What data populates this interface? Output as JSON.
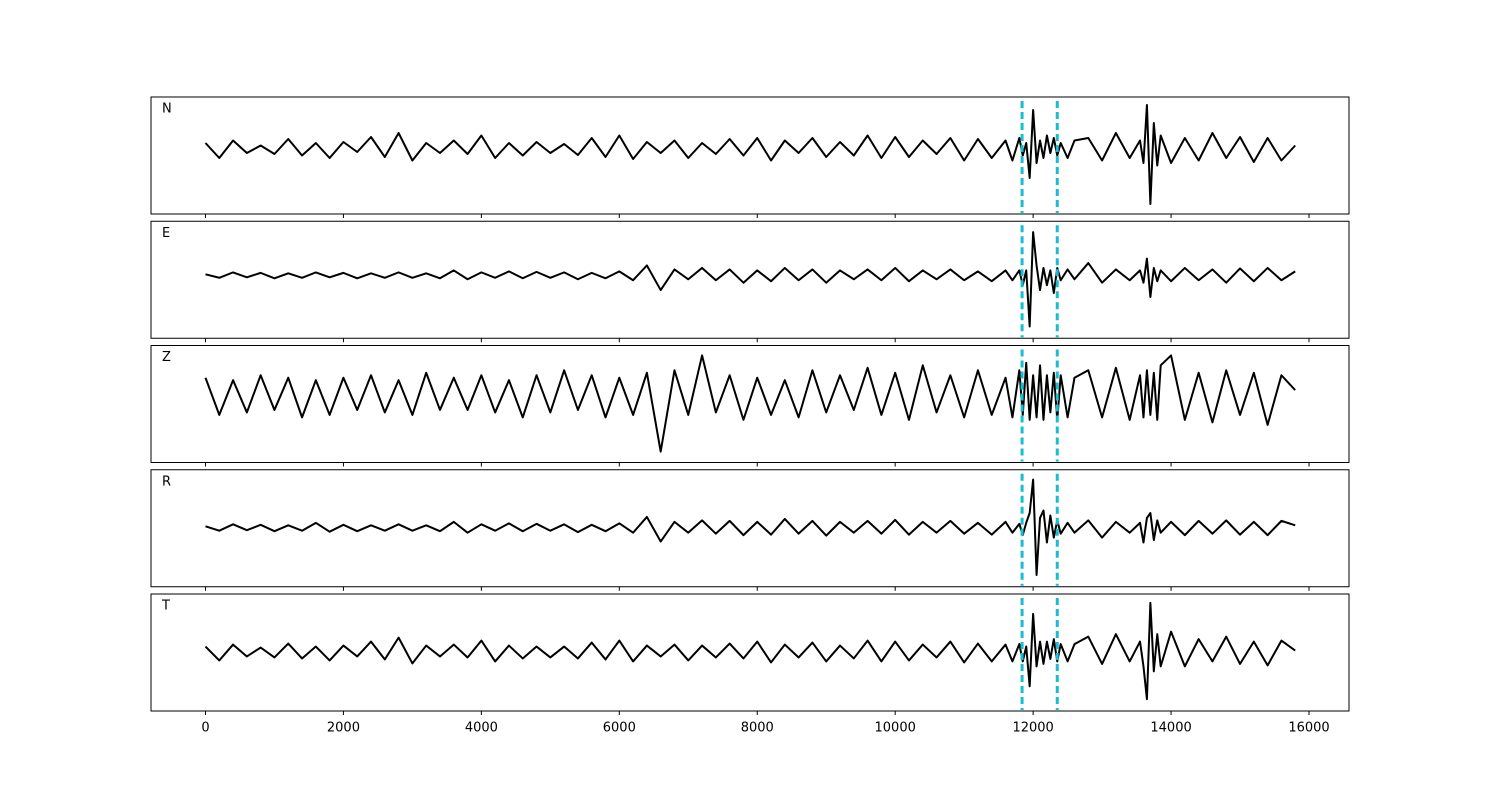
{
  "chart_data": {
    "type": "line",
    "x": [
      0,
      200,
      400,
      600,
      800,
      1000,
      1200,
      1400,
      1600,
      1800,
      2000,
      2200,
      2400,
      2600,
      2800,
      3000,
      3200,
      3400,
      3600,
      3800,
      4000,
      4200,
      4400,
      4600,
      4800,
      5000,
      5200,
      5400,
      5600,
      5800,
      6000,
      6200,
      6400,
      6600,
      6800,
      7000,
      7200,
      7400,
      7600,
      7800,
      8000,
      8200,
      8400,
      8600,
      8800,
      9000,
      9200,
      9400,
      9600,
      9800,
      10000,
      10200,
      10400,
      10600,
      10800,
      11000,
      11200,
      11400,
      11600,
      11700,
      11800,
      11850,
      11900,
      11950,
      12000,
      12050,
      12100,
      12150,
      12200,
      12250,
      12300,
      12350,
      12400,
      12500,
      12600,
      12800,
      13000,
      13200,
      13400,
      13550,
      13600,
      13650,
      13700,
      13750,
      13800,
      13850,
      14000,
      14200,
      14400,
      14600,
      14800,
      15000,
      15200,
      15400,
      15600,
      15800
    ],
    "xlim": [
      -790,
      16580
    ],
    "xticks": [
      0,
      2000,
      4000,
      6000,
      8000,
      10000,
      12000,
      14000,
      16000
    ],
    "vlines": [
      11840,
      12350
    ],
    "vline_color": "#17becf",
    "series": [
      {
        "name": "N",
        "color": "#000000",
        "ylim": [
          -1.32,
          1.02
        ],
        "values": [
          0.1,
          -0.2,
          0.15,
          -0.1,
          0.05,
          -0.12,
          0.18,
          -0.15,
          0.1,
          -0.2,
          0.12,
          -0.08,
          0.22,
          -0.18,
          0.3,
          -0.25,
          0.1,
          -0.1,
          0.15,
          -0.12,
          0.25,
          -0.2,
          0.1,
          -0.15,
          0.12,
          -0.1,
          0.08,
          -0.14,
          0.2,
          -0.18,
          0.25,
          -0.22,
          0.12,
          -0.1,
          0.15,
          -0.2,
          0.1,
          -0.12,
          0.18,
          -0.15,
          0.2,
          -0.25,
          0.15,
          -0.1,
          0.2,
          -0.18,
          0.12,
          -0.15,
          0.25,
          -0.2,
          0.22,
          -0.18,
          0.15,
          -0.12,
          0.2,
          -0.25,
          0.18,
          -0.2,
          0.15,
          -0.25,
          0.2,
          -0.15,
          0.1,
          -0.6,
          0.76,
          -0.3,
          0.15,
          -0.2,
          0.25,
          -0.1,
          0.2,
          -0.15,
          0.1,
          -0.2,
          0.15,
          0.2,
          -0.25,
          0.3,
          -0.2,
          0.15,
          -0.3,
          0.86,
          -1.12,
          0.5,
          -0.35,
          0.25,
          -0.3,
          0.2,
          -0.25,
          0.3,
          -0.2,
          0.22,
          -0.28,
          0.2,
          -0.25,
          0.05
        ]
      },
      {
        "name": "E",
        "color": "#000000",
        "ylim": [
          -1.28,
          1.1
        ],
        "values": [
          0.02,
          -0.05,
          0.06,
          -0.04,
          0.05,
          -0.06,
          0.04,
          -0.05,
          0.06,
          -0.04,
          0.05,
          -0.06,
          0.04,
          -0.05,
          0.06,
          -0.05,
          0.04,
          -0.06,
          0.1,
          -0.08,
          0.06,
          -0.05,
          0.08,
          -0.06,
          0.07,
          -0.05,
          0.06,
          -0.08,
          0.05,
          -0.06,
          0.08,
          -0.1,
          0.2,
          -0.3,
          0.12,
          -0.08,
          0.15,
          -0.1,
          0.12,
          -0.15,
          0.1,
          -0.12,
          0.15,
          -0.1,
          0.12,
          -0.15,
          0.1,
          -0.08,
          0.12,
          -0.1,
          0.15,
          -0.12,
          0.1,
          -0.08,
          0.12,
          -0.1,
          0.08,
          -0.12,
          0.1,
          -0.1,
          0.1,
          -0.2,
          0.1,
          -1.04,
          0.88,
          0.2,
          -0.3,
          0.15,
          -0.2,
          0.1,
          -0.36,
          0.15,
          -0.1,
          0.12,
          -0.08,
          0.25,
          -0.15,
          0.12,
          -0.1,
          0.1,
          -0.15,
          0.34,
          -0.44,
          0.15,
          -0.12,
          0.1,
          -0.12,
          0.15,
          -0.1,
          0.12,
          -0.15,
          0.14,
          -0.12,
          0.15,
          -0.1,
          0.08
        ]
      },
      {
        "name": "Z",
        "color": "#000000",
        "ylim": [
          -1.36,
          1.0
        ],
        "values": [
          0.35,
          -0.4,
          0.3,
          -0.35,
          0.4,
          -0.3,
          0.35,
          -0.45,
          0.3,
          -0.4,
          0.35,
          -0.3,
          0.4,
          -0.35,
          0.3,
          -0.4,
          0.45,
          -0.3,
          0.35,
          -0.3,
          0.4,
          -0.35,
          0.3,
          -0.45,
          0.4,
          -0.35,
          0.5,
          -0.3,
          0.4,
          -0.45,
          0.35,
          -0.4,
          0.45,
          -1.14,
          0.5,
          -0.4,
          0.8,
          -0.35,
          0.4,
          -0.5,
          0.35,
          -0.4,
          0.3,
          -0.45,
          0.5,
          -0.35,
          0.4,
          -0.3,
          0.55,
          -0.4,
          0.45,
          -0.5,
          0.6,
          -0.35,
          0.4,
          -0.45,
          0.5,
          -0.4,
          0.35,
          -0.45,
          0.5,
          -0.4,
          0.65,
          -0.5,
          0.4,
          -0.45,
          0.6,
          -0.5,
          0.4,
          -0.35,
          0.45,
          -0.5,
          0.4,
          -0.45,
          0.35,
          0.5,
          -0.45,
          0.55,
          -0.5,
          0.4,
          -0.45,
          0.5,
          -0.4,
          0.45,
          -0.5,
          0.6,
          0.8,
          -0.5,
          0.45,
          -0.55,
          0.5,
          -0.4,
          0.45,
          -0.6,
          0.4,
          0.1
        ]
      },
      {
        "name": "R",
        "color": "#000000",
        "ylim": [
          -1.2,
          1.18
        ],
        "values": [
          0.03,
          -0.06,
          0.07,
          -0.05,
          0.06,
          -0.07,
          0.05,
          -0.06,
          0.1,
          -0.08,
          0.06,
          -0.07,
          0.05,
          -0.06,
          0.07,
          -0.06,
          0.05,
          -0.07,
          0.12,
          -0.1,
          0.07,
          -0.06,
          0.09,
          -0.07,
          0.08,
          -0.06,
          0.07,
          -0.09,
          0.06,
          -0.07,
          0.09,
          -0.1,
          0.22,
          -0.28,
          0.12,
          -0.1,
          0.15,
          -0.12,
          0.14,
          -0.15,
          0.12,
          -0.14,
          0.18,
          -0.12,
          0.14,
          -0.16,
          0.12,
          -0.1,
          0.14,
          -0.12,
          0.16,
          -0.14,
          0.12,
          -0.1,
          0.14,
          -0.12,
          0.1,
          -0.14,
          0.12,
          -0.1,
          0.08,
          -0.15,
          0.1,
          0.3,
          0.98,
          -0.96,
          0.2,
          0.35,
          -0.3,
          0.25,
          -0.2,
          0.15,
          -0.12,
          0.1,
          -0.1,
          0.15,
          -0.2,
          0.12,
          -0.1,
          0.1,
          -0.3,
          0.2,
          0.3,
          -0.25,
          0.15,
          -0.1,
          0.12,
          -0.15,
          0.14,
          -0.12,
          0.15,
          -0.14,
          0.12,
          -0.15,
          0.14,
          0.05
        ]
      },
      {
        "name": "T",
        "color": "#000000",
        "ylim": [
          -1.2,
          1.16
        ],
        "values": [
          0.1,
          -0.18,
          0.14,
          -0.1,
          0.08,
          -0.12,
          0.16,
          -0.14,
          0.1,
          -0.18,
          0.12,
          -0.1,
          0.2,
          -0.16,
          0.28,
          -0.24,
          0.12,
          -0.1,
          0.14,
          -0.12,
          0.22,
          -0.2,
          0.12,
          -0.14,
          0.1,
          -0.12,
          0.1,
          -0.14,
          0.18,
          -0.16,
          0.22,
          -0.2,
          0.12,
          -0.1,
          0.14,
          -0.18,
          0.12,
          -0.12,
          0.16,
          -0.14,
          0.2,
          -0.22,
          0.14,
          -0.12,
          0.18,
          -0.2,
          0.12,
          -0.14,
          0.22,
          -0.2,
          0.2,
          -0.18,
          0.14,
          -0.12,
          0.2,
          -0.22,
          0.16,
          -0.2,
          0.14,
          -0.2,
          0.15,
          -0.2,
          0.1,
          -0.7,
          0.76,
          -0.3,
          0.2,
          -0.25,
          0.2,
          -0.15,
          0.25,
          -0.2,
          0.15,
          -0.2,
          0.15,
          0.3,
          -0.25,
          0.35,
          -0.2,
          0.2,
          -0.3,
          -0.96,
          0.98,
          -0.4,
          0.35,
          -0.3,
          0.4,
          -0.3,
          0.25,
          -0.2,
          0.3,
          -0.25,
          0.2,
          -0.28,
          0.22,
          0.02
        ]
      }
    ]
  }
}
